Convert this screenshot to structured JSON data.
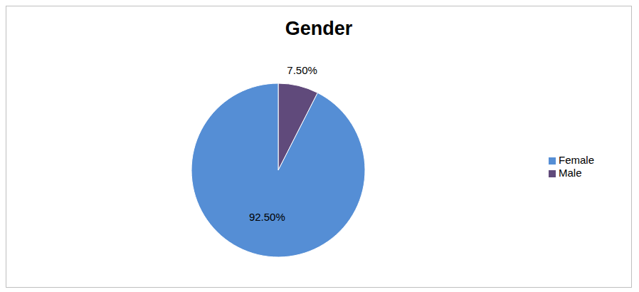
{
  "chart_data": {
    "type": "pie",
    "title": "Gender",
    "categories": [
      "Male",
      "Female"
    ],
    "values": [
      7.5,
      92.5
    ],
    "value_labels": [
      "7.50%",
      "92.50%"
    ],
    "colors": [
      "#604a7b",
      "#558ed5"
    ],
    "data_labels": true,
    "legend": "right"
  }
}
